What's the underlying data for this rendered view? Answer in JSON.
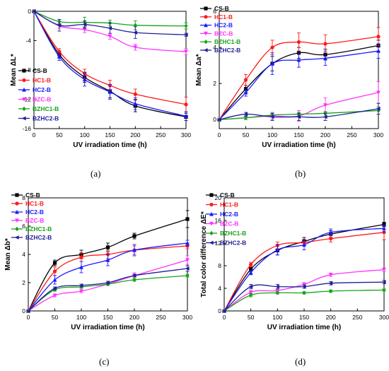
{
  "figure": {
    "panels": [
      {
        "id": "a",
        "label": "(a)"
      },
      {
        "id": "b",
        "label": "(b)"
      },
      {
        "id": "c",
        "label": "(c)"
      },
      {
        "id": "d",
        "label": "(d)"
      }
    ]
  },
  "colors": {
    "CS-B": "#000000",
    "HC1-B": "#ff1a1a",
    "HC2-B": "#1a1aff",
    "BZC-B": "#ff33ff",
    "BZHC1-B": "#17a317",
    "BZHC2-B": "#1f1f99"
  },
  "chart_data": [
    {
      "panel": "a",
      "type": "line",
      "xlabel": "UV irradiation time (h)",
      "ylabel": "Mean ΔL*",
      "xlim": [
        0,
        300
      ],
      "ylim": [
        -16,
        0
      ],
      "xticks": [
        0,
        50,
        100,
        150,
        200,
        250,
        300
      ],
      "yticks": [
        -16,
        -12,
        -8,
        -4,
        0
      ],
      "legend_position": "bottom-left",
      "x": [
        0,
        50,
        100,
        150,
        200,
        300
      ],
      "series": [
        {
          "name": "CS-B",
          "values": [
            0,
            -5.9,
            -9.0,
            -10.9,
            -12.9,
            -14.4
          ],
          "errors": [
            0,
            0.4,
            0.7,
            0.9,
            0.8,
            0.5
          ]
        },
        {
          "name": "HC1-B",
          "values": [
            0,
            -5.5,
            -8.5,
            -10.1,
            -11.3,
            -12.7
          ],
          "errors": [
            0,
            0.4,
            0.6,
            0.7,
            0.7,
            1.0
          ]
        },
        {
          "name": "HC2-B",
          "values": [
            0,
            -6.2,
            -9.3,
            -11.0,
            -12.6,
            -14.3
          ],
          "errors": [
            0,
            0.5,
            0.9,
            1.0,
            0.8,
            0.6
          ]
        },
        {
          "name": "BZC-B",
          "values": [
            0,
            -2.0,
            -2.5,
            -3.4,
            -4.9,
            -5.5
          ],
          "errors": [
            0,
            0.3,
            0.4,
            0.4,
            0.4,
            0.4
          ]
        },
        {
          "name": "BZHC1-B",
          "values": [
            0,
            -1.4,
            -1.5,
            -1.6,
            -1.9,
            -2.0
          ],
          "errors": [
            0,
            0.3,
            0.7,
            0.4,
            0.6,
            0.4
          ]
        },
        {
          "name": "BZHC2-B",
          "values": [
            0,
            -1.9,
            -1.8,
            -2.3,
            -2.9,
            -3.2
          ],
          "errors": [
            0,
            0.8,
            0.5,
            0.7,
            0.8,
            0.2
          ]
        }
      ]
    },
    {
      "panel": "b",
      "type": "line",
      "xlabel": "UV irradiation time (h)",
      "ylabel": "Mean Δa*",
      "xlim": [
        0,
        300
      ],
      "ylim": [
        -0.5,
        6
      ],
      "xticks": [
        0,
        50,
        100,
        150,
        200,
        250,
        300
      ],
      "yticks": [
        0,
        2,
        4,
        6
      ],
      "legend_position": "top-left",
      "x": [
        0,
        50,
        100,
        150,
        200,
        300
      ],
      "series": [
        {
          "name": "CS-B",
          "values": [
            0,
            1.7,
            3.1,
            3.7,
            3.6,
            4.1
          ],
          "errors": [
            0,
            0.2,
            0.4,
            0.3,
            0.3,
            0.3
          ]
        },
        {
          "name": "HC1-B",
          "values": [
            0,
            2.2,
            4.0,
            4.3,
            4.2,
            4.6
          ],
          "errors": [
            0,
            0.3,
            0.4,
            0.5,
            0.5,
            0.5
          ]
        },
        {
          "name": "HC2-B",
          "values": [
            0,
            1.5,
            3.1,
            3.3,
            3.4,
            3.8
          ],
          "errors": [
            0,
            0.2,
            0.6,
            0.4,
            0.4,
            0.4
          ]
        },
        {
          "name": "BZC-B",
          "values": [
            0,
            0.1,
            0.2,
            0.2,
            0.8,
            1.5
          ],
          "errors": [
            0,
            0.1,
            0.2,
            0.3,
            0.4,
            0.6
          ]
        },
        {
          "name": "BZHC1-B",
          "values": [
            0,
            0.1,
            0.25,
            0.3,
            0.35,
            0.5
          ],
          "errors": [
            0,
            0.1,
            0.1,
            0.1,
            0.1,
            0.2
          ]
        },
        {
          "name": "BZHC2-B",
          "values": [
            0,
            0.3,
            0.15,
            0.15,
            0.15,
            0.6
          ],
          "errors": [
            0,
            0.1,
            0.2,
            0.2,
            0.2,
            0.3
          ]
        }
      ]
    },
    {
      "panel": "c",
      "type": "line",
      "xlabel": "UV irradiation time (h)",
      "ylabel": "Mean Δb*",
      "xlim": [
        0,
        300
      ],
      "ylim": [
        0,
        8
      ],
      "xticks": [
        0,
        50,
        100,
        150,
        200,
        250,
        300
      ],
      "yticks": [
        0,
        2,
        4,
        6,
        8
      ],
      "legend_position": "top-left",
      "x": [
        0,
        50,
        100,
        150,
        200,
        300
      ],
      "series": [
        {
          "name": "CS-B",
          "values": [
            0,
            3.4,
            4.0,
            4.5,
            5.3,
            6.5
          ],
          "errors": [
            0,
            0.2,
            0.3,
            0.3,
            0.2,
            0.6
          ]
        },
        {
          "name": "HC1-B",
          "values": [
            0,
            2.8,
            3.8,
            4.0,
            4.3,
            4.6
          ],
          "errors": [
            0,
            0.3,
            0.3,
            0.3,
            0.3,
            0.2
          ]
        },
        {
          "name": "HC2-B",
          "values": [
            0,
            2.2,
            3.1,
            3.6,
            4.3,
            4.8
          ],
          "errors": [
            0,
            0.3,
            0.4,
            0.4,
            0.4,
            0.2
          ]
        },
        {
          "name": "BZC-B",
          "values": [
            0,
            1.1,
            1.4,
            1.9,
            2.5,
            3.6
          ],
          "errors": [
            0,
            0.1,
            0.1,
            0.1,
            0.2,
            0.3
          ]
        },
        {
          "name": "BZHC1-B",
          "values": [
            0,
            1.5,
            1.7,
            1.9,
            2.2,
            2.5
          ],
          "errors": [
            0,
            0.1,
            0.1,
            0.1,
            0.1,
            0.1
          ]
        },
        {
          "name": "BZHC2-B",
          "values": [
            0,
            1.6,
            1.8,
            2.0,
            2.5,
            3.0
          ],
          "errors": [
            0,
            0.1,
            0.1,
            0.1,
            0.1,
            0.2
          ]
        }
      ]
    },
    {
      "panel": "d",
      "type": "line",
      "xlabel": "UV irradiation time (h)",
      "ylabel": "Total color difference ΔE*",
      "xlim": [
        0,
        300
      ],
      "ylim": [
        0,
        20
      ],
      "xticks": [
        0,
        50,
        100,
        150,
        200,
        250,
        300
      ],
      "yticks": [
        0,
        4,
        8,
        12,
        16,
        20
      ],
      "legend_position": "top-left",
      "x": [
        0,
        50,
        100,
        150,
        200,
        300
      ],
      "series": [
        {
          "name": "CS-B",
          "values": [
            0,
            7.4,
            10.7,
            12.3,
            13.6,
            15.3
          ],
          "errors": [
            0,
            0.4,
            0.8,
            0.7,
            0.6,
            0.4
          ]
        },
        {
          "name": "HC1-B",
          "values": [
            0,
            8.2,
            11.6,
            12.1,
            12.8,
            13.9
          ],
          "errors": [
            0,
            0.4,
            0.6,
            0.6,
            0.6,
            1.3
          ]
        },
        {
          "name": "HC2-B",
          "values": [
            0,
            6.8,
            10.8,
            11.7,
            13.9,
            14.6
          ],
          "errors": [
            0,
            0.4,
            0.9,
            0.9,
            0.6,
            0.6
          ]
        },
        {
          "name": "BZC-B",
          "values": [
            0,
            3.3,
            3.6,
            4.7,
            6.4,
            7.3
          ],
          "errors": [
            0,
            0.3,
            0.3,
            0.3,
            0.3,
            0.3
          ]
        },
        {
          "name": "BZHC1-B",
          "values": [
            0,
            2.8,
            3.2,
            3.2,
            3.5,
            3.7
          ],
          "errors": [
            0,
            0.3,
            0.2,
            0.2,
            0.2,
            0.2
          ]
        },
        {
          "name": "BZHC2-B",
          "values": [
            0,
            4.3,
            4.3,
            4.3,
            4.9,
            5.1
          ],
          "errors": [
            0,
            0.4,
            0.4,
            0.3,
            0.3,
            0.3
          ]
        }
      ]
    }
  ]
}
